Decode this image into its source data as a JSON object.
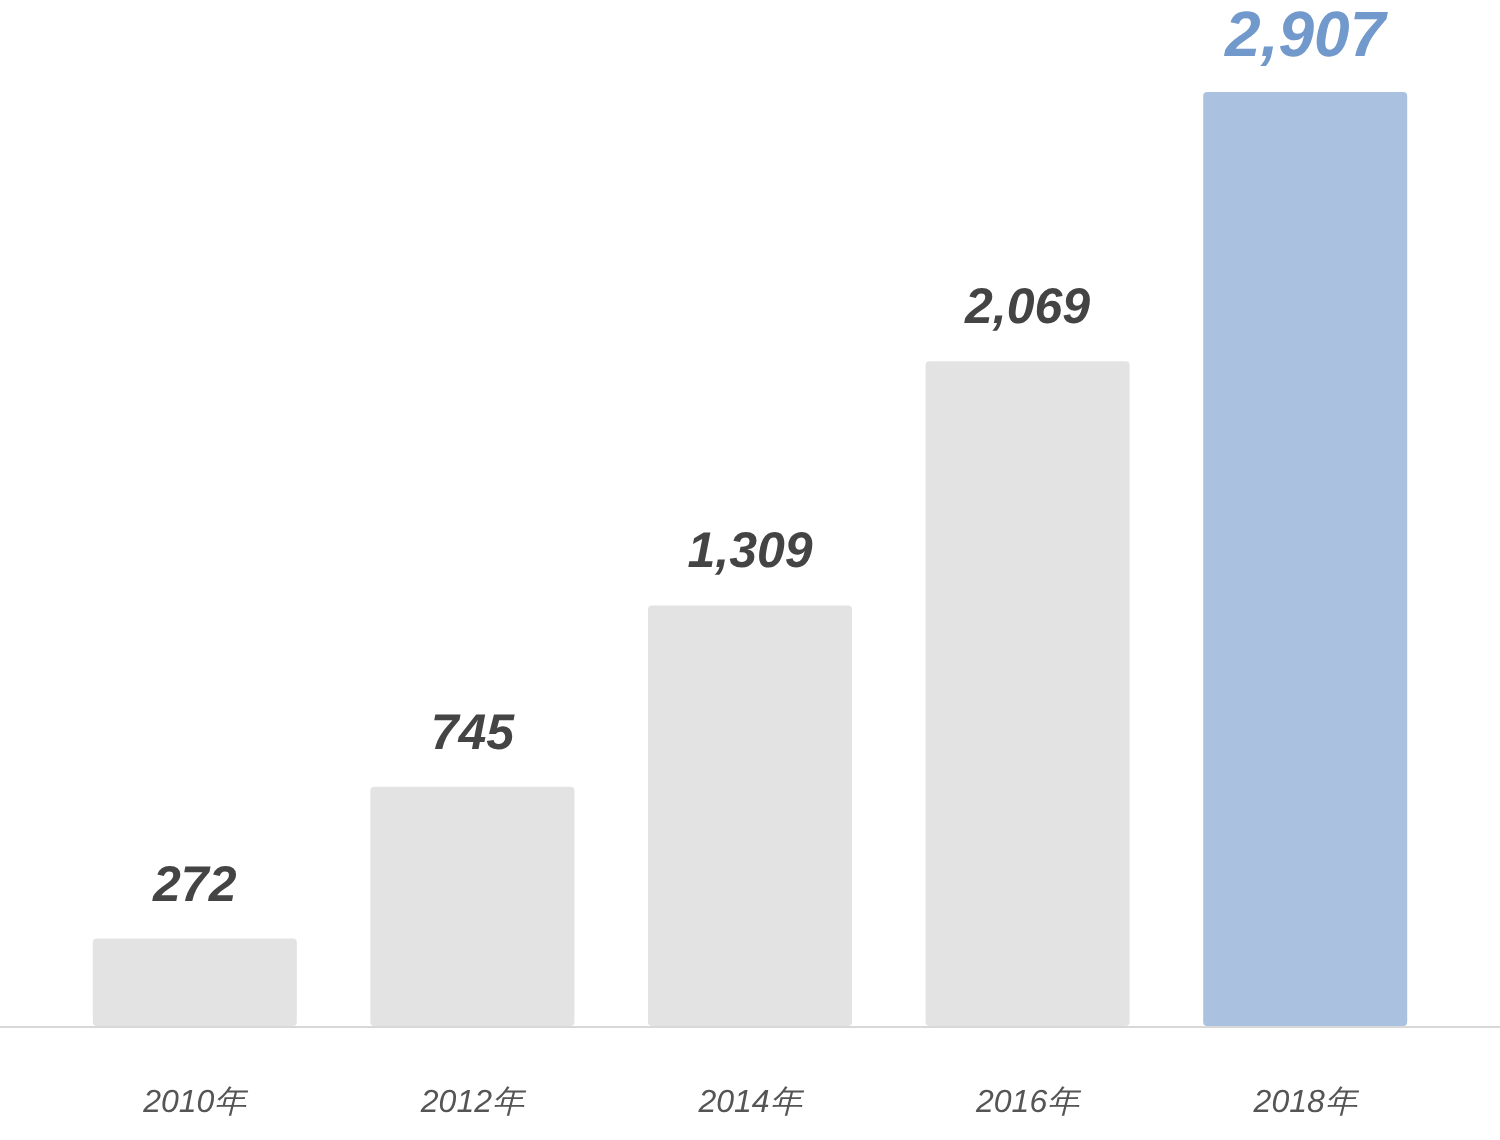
{
  "chart_data": {
    "type": "bar",
    "categories": [
      "2010年",
      "2012年",
      "2014年",
      "2016年",
      "2018年"
    ],
    "values": [
      272,
      745,
      1309,
      2069,
      2907
    ],
    "value_labels": [
      "272",
      "745",
      "1,309",
      "2,069",
      "2,907"
    ],
    "colors": [
      "#e3e3e3",
      "#e3e3e3",
      "#e3e3e3",
      "#e3e3e3",
      "#aac2e0"
    ]
  }
}
